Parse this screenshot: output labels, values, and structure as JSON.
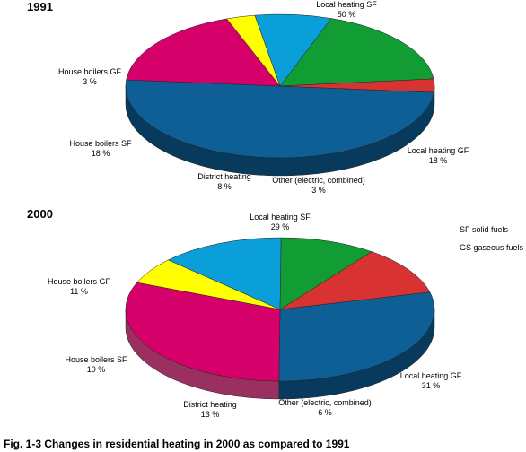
{
  "caption": "Fig. 1-3  Changes in residential heating in 2000 as compared to 1991",
  "legend_notes": [
    "SF solid fuels",
    "GS gaseous fuels"
  ],
  "chart_data": [
    {
      "type": "pie",
      "title": "1991",
      "slices": [
        {
          "label": "Local heating SF",
          "value": 50,
          "display": "50 %",
          "color": "#0e5f96",
          "side_color": "#073a5c"
        },
        {
          "label": "Local heating GF",
          "value": 18,
          "display": "18 %",
          "color": "#d6006b",
          "side_color": "#9a3060"
        },
        {
          "label": "Other (electric, combined)",
          "value": 3,
          "display": "3 %",
          "color": "#ffff00",
          "side_color": "#a09a00"
        },
        {
          "label": "District heating",
          "value": 8,
          "display": "8 %",
          "color": "#0a9fd8",
          "side_color": "#0b6a94"
        },
        {
          "label": "House boilers SF",
          "value": 18,
          "display": "18 %",
          "color": "#129c34",
          "side_color": "#0c5e22"
        },
        {
          "label": "House boilers GF",
          "value": 3,
          "display": "3 %",
          "color": "#d83232",
          "side_color": "#8e1e1e"
        }
      ]
    },
    {
      "type": "pie",
      "title": "2000",
      "slices": [
        {
          "label": "Local heating SF",
          "value": 29,
          "display": "29 %",
          "color": "#0e5f96",
          "side_color": "#073a5c"
        },
        {
          "label": "Local heating GF",
          "value": 31,
          "display": "31 %",
          "color": "#d6006b",
          "side_color": "#9a3060"
        },
        {
          "label": "Other (electric, combined)",
          "value": 6,
          "display": "6 %",
          "color": "#ffff00",
          "side_color": "#a09a00"
        },
        {
          "label": "District heating",
          "value": 13,
          "display": "13 %",
          "color": "#0a9fd8",
          "side_color": "#0b6a94"
        },
        {
          "label": "House boilers SF",
          "value": 10,
          "display": "10 %",
          "color": "#129c34",
          "side_color": "#0c5e22"
        },
        {
          "label": "House boilers GF",
          "value": 11,
          "display": "11 %",
          "color": "#d83232",
          "side_color": "#8e1e1e"
        }
      ]
    }
  ]
}
